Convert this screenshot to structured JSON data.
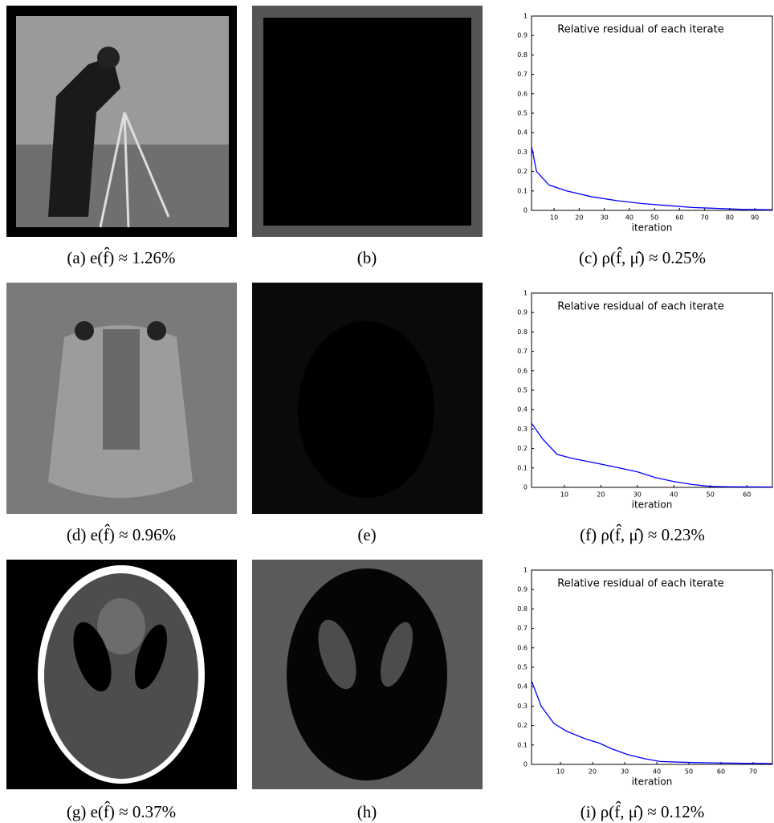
{
  "chart_data": [
    {
      "type": "line",
      "title": "Relative residual of each iterate",
      "xlabel": "iteration",
      "x": [
        1,
        3,
        8,
        15,
        25,
        35,
        45,
        55,
        65,
        75,
        85,
        97
      ],
      "values": [
        0.33,
        0.2,
        0.13,
        0.1,
        0.07,
        0.05,
        0.035,
        0.025,
        0.015,
        0.01,
        0.005,
        0.003
      ],
      "color": "#0000ff",
      "xlim": [
        1,
        97
      ],
      "ylim": [
        0,
        1
      ],
      "xticks": [
        10,
        20,
        30,
        40,
        50,
        60,
        70,
        80,
        90
      ],
      "yticks": [
        0,
        0.1,
        0.2,
        0.3,
        0.4,
        0.5,
        0.6,
        0.7,
        0.8,
        0.9,
        1
      ]
    },
    {
      "type": "line",
      "title": "Relative residual of each iterate",
      "xlabel": "iteration",
      "x": [
        1,
        4,
        8,
        12,
        20,
        25,
        30,
        35,
        40,
        45,
        50,
        55,
        67
      ],
      "values": [
        0.33,
        0.25,
        0.17,
        0.15,
        0.12,
        0.1,
        0.08,
        0.05,
        0.03,
        0.015,
        0.005,
        0.003,
        0.002
      ],
      "color": "#0000ff",
      "xlim": [
        1,
        67
      ],
      "ylim": [
        0,
        1
      ],
      "xticks": [
        10,
        20,
        30,
        40,
        50,
        60
      ],
      "yticks": [
        0,
        0.1,
        0.2,
        0.3,
        0.4,
        0.5,
        0.6,
        0.7,
        0.8,
        0.9,
        1
      ]
    },
    {
      "type": "line",
      "title": "Relative residual of each iterate",
      "xlabel": "iteration",
      "x": [
        1,
        4,
        8,
        12,
        18,
        22,
        26,
        31,
        36,
        41,
        50,
        60,
        76
      ],
      "values": [
        0.43,
        0.3,
        0.21,
        0.17,
        0.13,
        0.11,
        0.08,
        0.05,
        0.03,
        0.015,
        0.01,
        0.007,
        0.004
      ],
      "color": "#0000ff",
      "xlim": [
        1,
        76
      ],
      "ylim": [
        0,
        1
      ],
      "xticks": [
        10,
        20,
        30,
        40,
        50,
        60,
        70
      ],
      "yticks": [
        0,
        0.1,
        0.2,
        0.3,
        0.4,
        0.5,
        0.6,
        0.7,
        0.8,
        0.9,
        1
      ]
    }
  ],
  "captions": [
    "(a) e(f̂) ≈ 1.26%",
    "(b)",
    "(c) ρ(f̂, μ̂) ≈ 0.25%",
    "(d) e(f̂) ≈ 0.96%",
    "(e)",
    "(f) ρ(f̂, μ̂) ≈ 0.23%",
    "(g) e(f̂) ≈ 0.37%",
    "(h)",
    "(i) ρ(f̂, μ̂) ≈ 0.12%"
  ]
}
